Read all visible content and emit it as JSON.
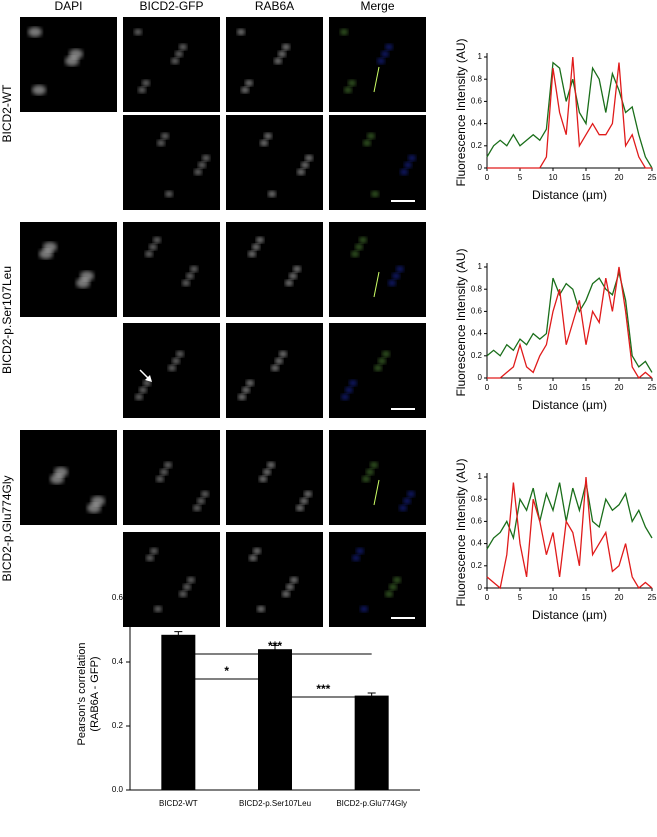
{
  "panels": {
    "columns": [
      {
        "label": "DAPI",
        "color": "#1a1a8c"
      },
      {
        "label": "BICD2-GFP",
        "color": "#1a8c1a"
      },
      {
        "label": "RAB6A",
        "color": "#cc1a1a"
      },
      {
        "label": "Merge",
        "color": "#000000"
      }
    ],
    "rows": [
      "BICD2-WT",
      "BICD2-p.Ser107Leu",
      "BICD2-p.Glu774Gly"
    ]
  },
  "chart_data": [
    {
      "type": "line",
      "y_label": "Fluorescence Intensity (AU)",
      "x_label": "Distance (µm)",
      "x": [
        0,
        1,
        2,
        3,
        4,
        5,
        6,
        7,
        8,
        9,
        10,
        11,
        12,
        13,
        14,
        15,
        16,
        17,
        18,
        19,
        20,
        21,
        22,
        23,
        24,
        25
      ],
      "xlim": [
        0,
        25
      ],
      "xticks": [
        0,
        5,
        10,
        15,
        20,
        25
      ],
      "ylim": [
        0,
        1
      ],
      "yticks": [
        0,
        0.2,
        0.4,
        0.6,
        0.8,
        1
      ],
      "series": [
        {
          "color": "#1a6e1a",
          "values": [
            0.1,
            0.2,
            0.25,
            0.2,
            0.3,
            0.2,
            0.25,
            0.3,
            0.25,
            0.35,
            0.95,
            0.9,
            0.6,
            0.8,
            0.5,
            0.4,
            0.9,
            0.8,
            0.5,
            0.85,
            0.7,
            0.5,
            0.55,
            0.3,
            0.1,
            0
          ]
        },
        {
          "color": "#e01b1b",
          "values": [
            0,
            0,
            0,
            0,
            0,
            0,
            0,
            0,
            0,
            0.1,
            0.9,
            0.5,
            0.3,
            1,
            0.2,
            0.3,
            0.4,
            0.3,
            0.3,
            0.4,
            0.95,
            0.2,
            0.3,
            0.1,
            0,
            0
          ]
        }
      ]
    },
    {
      "type": "line",
      "y_label": "Fluorescence Intensity (AU)",
      "x_label": "Distance (µm)",
      "x": [
        0,
        1,
        2,
        3,
        4,
        5,
        6,
        7,
        8,
        9,
        10,
        11,
        12,
        13,
        14,
        15,
        16,
        17,
        18,
        19,
        20,
        21,
        22,
        23,
        24,
        25
      ],
      "xlim": [
        0,
        25
      ],
      "xticks": [
        0,
        5,
        10,
        15,
        20,
        25
      ],
      "ylim": [
        0,
        1
      ],
      "yticks": [
        0,
        0.2,
        0.4,
        0.6,
        0.8,
        1
      ],
      "series": [
        {
          "color": "#1a6e1a",
          "values": [
            0.2,
            0.25,
            0.2,
            0.3,
            0.25,
            0.35,
            0.3,
            0.4,
            0.35,
            0.4,
            0.9,
            0.75,
            0.85,
            0.8,
            0.6,
            0.7,
            0.85,
            0.9,
            0.8,
            0.75,
            0.95,
            0.7,
            0.2,
            0.1,
            0.15,
            0.05
          ]
        },
        {
          "color": "#e01b1b",
          "values": [
            0,
            0,
            0,
            0.05,
            0.1,
            0.3,
            0.1,
            0.05,
            0.2,
            0.3,
            0.6,
            0.8,
            0.3,
            0.5,
            0.7,
            0.3,
            0.6,
            0.5,
            0.9,
            0.6,
            1,
            0.6,
            0.1,
            0,
            0.05,
            0
          ]
        }
      ]
    },
    {
      "type": "line",
      "y_label": "Fluorescence Intensity (AU)",
      "x_label": "Distance (µm)",
      "x": [
        0,
        1,
        2,
        3,
        4,
        5,
        6,
        7,
        8,
        9,
        10,
        11,
        12,
        13,
        14,
        15,
        16,
        17,
        18,
        19,
        20,
        21,
        22,
        23,
        24,
        25
      ],
      "xlim": [
        0,
        25
      ],
      "xticks": [
        0,
        5,
        10,
        15,
        20,
        25
      ],
      "ylim": [
        0,
        1
      ],
      "yticks": [
        0,
        0.2,
        0.4,
        0.6,
        0.8,
        1
      ],
      "series": [
        {
          "color": "#1a6e1a",
          "values": [
            0.35,
            0.45,
            0.5,
            0.6,
            0.45,
            0.8,
            0.7,
            0.9,
            0.6,
            0.85,
            0.7,
            0.95,
            0.6,
            0.9,
            0.7,
            0.95,
            0.6,
            0.55,
            0.8,
            0.7,
            0.75,
            0.85,
            0.6,
            0.7,
            0.55,
            0.45
          ]
        },
        {
          "color": "#e01b1b",
          "values": [
            0.1,
            0.05,
            0,
            0.3,
            0.95,
            0.4,
            0.1,
            0.8,
            0.6,
            0.3,
            0.5,
            0.1,
            0.6,
            0.5,
            0.2,
            1,
            0.3,
            0.4,
            0.5,
            0.15,
            0.2,
            0.4,
            0.1,
            0,
            0.05,
            0
          ]
        }
      ]
    },
    {
      "type": "bar",
      "y_label": [
        "Pearson's correlation",
        "(RAB6A - GFP)"
      ],
      "categories": [
        "BICD2-WT",
        "BICD2-p.Ser107Leu",
        "BICD2-p.Glu774Gly"
      ],
      "values": [
        0.485,
        0.44,
        0.295
      ],
      "errors": [
        0.01,
        0.012,
        0.008
      ],
      "color": "#000000",
      "ylim": [
        0,
        0.6
      ],
      "yticks": [
        {
          "value": 0,
          "label": "0.0"
        },
        0.2,
        0.4,
        0.6
      ],
      "annotations": [
        "*",
        "***",
        "***"
      ]
    }
  ]
}
